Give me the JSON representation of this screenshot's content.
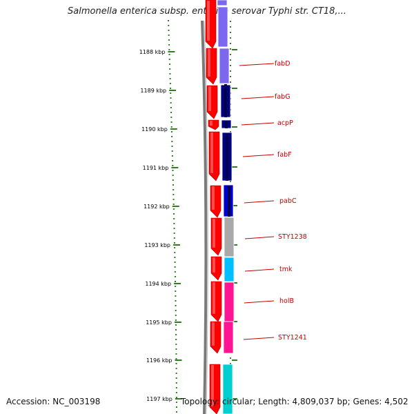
{
  "title": "Salmonella enterica subsp. enterica serovar Typhi str. CT18,...",
  "footer": {
    "accession": "Accession: NC_003198",
    "summary": "Topology: circular; Length: 4,809,037 bp; Genes: 4,502"
  },
  "ruler": {
    "labels": [
      "1188 kbp",
      "1189 kbp",
      "1190 kbp",
      "1191 kbp",
      "1192 kbp",
      "1193 kbp",
      "1194 kbp",
      "1195 kbp",
      "1196 kbp",
      "1197 kbp"
    ]
  },
  "genes": [
    {
      "name": "fabD"
    },
    {
      "name": "fabG"
    },
    {
      "name": "acpP"
    },
    {
      "name": "fabF"
    },
    {
      "name": "pabC"
    },
    {
      "name": "STY1238"
    },
    {
      "name": "tmk"
    },
    {
      "name": "holB"
    },
    {
      "name": "STY1241"
    }
  ],
  "colors": {
    "forward_strand": "#ff0000",
    "backbone": "#808080",
    "ticks": "#2e7d1e",
    "label": "#c00000",
    "categories": [
      "#7b68ee",
      "#000080",
      "#0000cd",
      "#a9a9a9",
      "#00bfff",
      "#ff1493",
      "#00ced1"
    ]
  }
}
